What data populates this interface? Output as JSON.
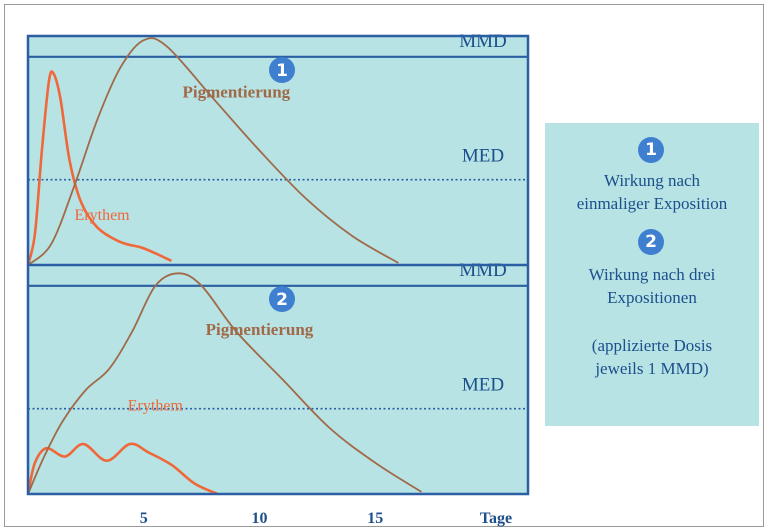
{
  "chart_data": [
    {
      "type": "line",
      "badge": "1",
      "xlabel": "Tage",
      "xticks": [
        5,
        10,
        15
      ],
      "xlim": [
        0,
        21.6
      ],
      "ylim": [
        0,
        1.1
      ],
      "thresholds": [
        {
          "label": "MMD",
          "value": 1.0,
          "style": "solid"
        },
        {
          "label": "MED",
          "value": 0.41,
          "style": "dotted"
        }
      ],
      "series": [
        {
          "name": "Erythem",
          "color": "#f0683a",
          "points": [
            [
              0,
              0
            ],
            [
              0.3,
              0.15
            ],
            [
              0.6,
              0.55
            ],
            [
              0.9,
              0.88
            ],
            [
              1.1,
              0.92
            ],
            [
              1.4,
              0.8
            ],
            [
              1.8,
              0.5
            ],
            [
              2.3,
              0.3
            ],
            [
              3,
              0.18
            ],
            [
              4,
              0.11
            ],
            [
              5,
              0.08
            ],
            [
              6.2,
              0.02
            ]
          ]
        },
        {
          "name": "Pigmentierung",
          "color": "#a06a48",
          "points": [
            [
              0,
              0
            ],
            [
              1,
              0.1
            ],
            [
              2,
              0.38
            ],
            [
              3,
              0.7
            ],
            [
              4,
              0.95
            ],
            [
              5,
              1.08
            ],
            [
              6,
              1.05
            ],
            [
              8,
              0.8
            ],
            [
              10,
              0.55
            ],
            [
              12,
              0.32
            ],
            [
              14,
              0.14
            ],
            [
              16,
              0.01
            ]
          ]
        }
      ]
    },
    {
      "type": "line",
      "badge": "2",
      "xlabel": "Tage",
      "xticks": [
        5,
        10,
        15
      ],
      "xlim": [
        0,
        21.6
      ],
      "ylim": [
        0,
        1.1
      ],
      "thresholds": [
        {
          "label": "MMD",
          "value": 1.0,
          "style": "solid"
        },
        {
          "label": "MED",
          "value": 0.41,
          "style": "dotted"
        }
      ],
      "series": [
        {
          "name": "Erythem",
          "color": "#f0683a",
          "points": [
            [
              0,
              0
            ],
            [
              0.3,
              0.15
            ],
            [
              0.8,
              0.22
            ],
            [
              1.6,
              0.18
            ],
            [
              2.4,
              0.24
            ],
            [
              3.4,
              0.16
            ],
            [
              4.4,
              0.24
            ],
            [
              5.2,
              0.2
            ],
            [
              6.2,
              0.14
            ],
            [
              7.2,
              0.05
            ],
            [
              8.2,
              0
            ]
          ]
        },
        {
          "name": "Pigmentierung",
          "color": "#a06a48",
          "points": [
            [
              0,
              0
            ],
            [
              0.7,
              0.18
            ],
            [
              1.5,
              0.35
            ],
            [
              2.5,
              0.5
            ],
            [
              3.5,
              0.6
            ],
            [
              4.5,
              0.78
            ],
            [
              5.5,
              1.0
            ],
            [
              6.5,
              1.06
            ],
            [
              7.5,
              1.0
            ],
            [
              9,
              0.78
            ],
            [
              11,
              0.55
            ],
            [
              13,
              0.32
            ],
            [
              15,
              0.15
            ],
            [
              17,
              0.01
            ]
          ]
        }
      ]
    }
  ],
  "legend": {
    "badge1": "1",
    "line1": "Wirkung nach",
    "line2": "einmaliger Exposition",
    "badge2": "2",
    "line3": "Wirkung nach drei",
    "line4": "Expositionen",
    "line5": "(applizierte Dosis",
    "line6": "jeweils 1 MMD)"
  },
  "colors": {
    "panel_fill": "#b7e3e4",
    "panel_border": "#2a5fa3",
    "badge": "#3f7fd0",
    "threshold_text": "#1c4f8c",
    "erythem": "#f0683a",
    "pigmentierung": "#a06a48",
    "tick_text": "#1c4f8c"
  }
}
